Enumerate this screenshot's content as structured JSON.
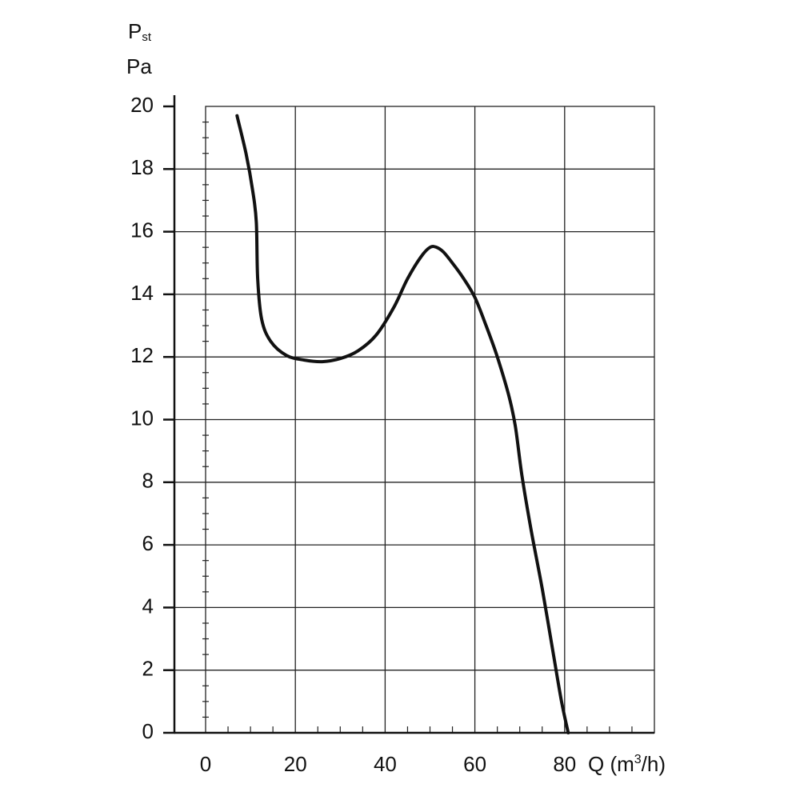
{
  "chart_data": {
    "type": "line",
    "title": "",
    "ylabel_symbol": "P",
    "ylabel_subscript": "st",
    "ylabel_unit": "Pa",
    "xlabel_main": "Q (m",
    "xlabel_sup": "3",
    "xlabel_end": "/h)",
    "xlim": [
      0,
      100
    ],
    "ylim": [
      0,
      20
    ],
    "x_ticks": [
      0,
      20,
      40,
      60,
      80
    ],
    "y_ticks": [
      0,
      2,
      4,
      6,
      8,
      10,
      12,
      14,
      16,
      18,
      20
    ],
    "x_tick_labels": [
      "0",
      "20",
      "40",
      "60",
      "80"
    ],
    "y_tick_labels": [
      "0",
      "2",
      "4",
      "6",
      "8",
      "10",
      "12",
      "14",
      "16",
      "18",
      "20"
    ],
    "grid": true,
    "series": [
      {
        "color": "#111111",
        "x": [
          7,
          9,
          10.5,
          11.3,
          11.6,
          12.5,
          14.5,
          18,
          22,
          26,
          30,
          34,
          38,
          42,
          45,
          48,
          50,
          51.5,
          53,
          55,
          57.5,
          60,
          62.5,
          65,
          67.5,
          69,
          70.5,
          72.5,
          75,
          77.5,
          79.3,
          80.8
        ],
        "y": [
          19.7,
          18.5,
          17.3,
          16.3,
          14.5,
          13.2,
          12.5,
          12.05,
          11.9,
          11.85,
          11.95,
          12.2,
          12.7,
          13.6,
          14.5,
          15.2,
          15.5,
          15.5,
          15.35,
          15.0,
          14.5,
          13.9,
          13.0,
          12.0,
          10.8,
          9.8,
          8.2,
          6.5,
          4.6,
          2.5,
          1.0,
          0.0
        ]
      }
    ]
  }
}
